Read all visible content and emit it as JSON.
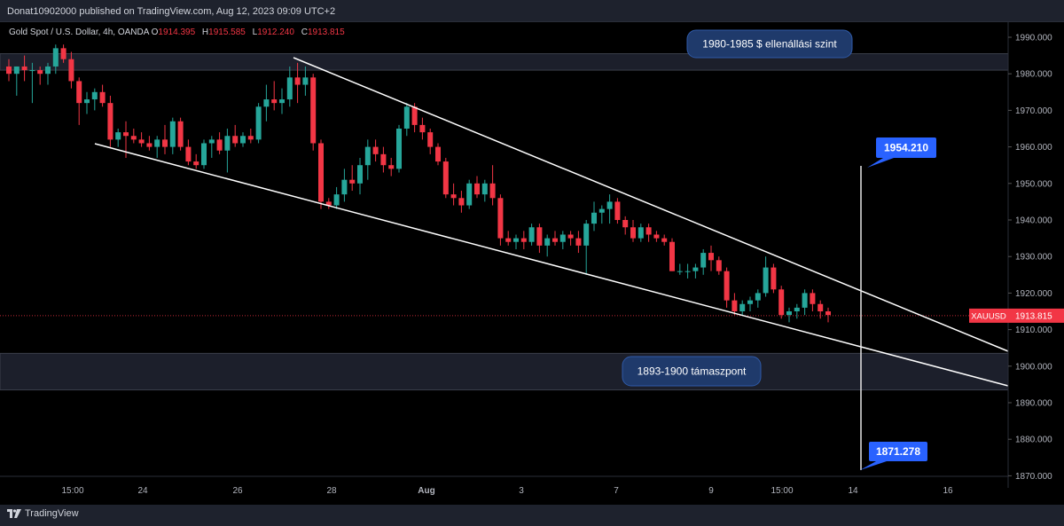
{
  "header": {
    "published_text": "Donat10902000 published on TradingView.com, Aug 12, 2023 09:09 UTC+2"
  },
  "legend": {
    "title": "Gold Spot / U.S. Dollar, 4h, OANDA",
    "o_label": "O",
    "o_value": "1914.395",
    "h_label": "H",
    "h_value": "1915.585",
    "l_label": "L",
    "l_value": "1912.240",
    "c_label": "C",
    "c_value": "1913.815"
  },
  "footer": {
    "brand": "TradingView",
    "logo_icon": "tradingview-logo-icon"
  },
  "colors": {
    "background": "#000000",
    "up": "#26a69a",
    "down": "#f23645",
    "line": "#ffffff",
    "label_bg": "#1f3a6b",
    "price_tag": "#2962ff",
    "last_price_tag": "#f23645",
    "axis_text": "#b2b5be"
  },
  "chart_data": {
    "type": "candlestick",
    "symbol": "XAUUSD",
    "timeframe": "4h",
    "last_price_label": "XAUUSD",
    "last_price": "1913.815",
    "y_ticks": [
      "1990.000",
      "1980.000",
      "1970.000",
      "1960.000",
      "1950.000",
      "1940.000",
      "1930.000",
      "1920.000",
      "1910.000",
      "1900.000",
      "1890.000",
      "1880.000",
      "1870.000"
    ],
    "ylim": [
      1867,
      1995
    ],
    "x_ticks": [
      "15:00",
      "24",
      "26",
      "28",
      "Aug",
      "3",
      "7",
      "9",
      "15:00",
      "14",
      "16"
    ],
    "annotations": {
      "resistance_label": "1980-1985 $ ellenállási szint",
      "support_label": "1893-1900 támaszpont",
      "target_up": "1954.210",
      "target_down": "1871.278"
    },
    "zones": [
      {
        "name": "resistance",
        "from": 1981,
        "to": 1985.5
      },
      {
        "name": "support",
        "from": 1893.5,
        "to": 1903.5
      }
    ],
    "candles": [
      {
        "o": 1982,
        "h": 1984,
        "l": 1978,
        "c": 1980
      },
      {
        "o": 1980,
        "h": 1982,
        "l": 1974,
        "c": 1982
      },
      {
        "o": 1982,
        "h": 1985,
        "l": 1978,
        "c": 1981
      },
      {
        "o": 1981,
        "h": 1983,
        "l": 1972,
        "c": 1981
      },
      {
        "o": 1981,
        "h": 1982,
        "l": 1977,
        "c": 1980
      },
      {
        "o": 1980,
        "h": 1983,
        "l": 1977,
        "c": 1982
      },
      {
        "o": 1982,
        "h": 1988,
        "l": 1980,
        "c": 1987
      },
      {
        "o": 1987,
        "h": 1988,
        "l": 1983,
        "c": 1984
      },
      {
        "o": 1984,
        "h": 1986,
        "l": 1976,
        "c": 1978
      },
      {
        "o": 1978,
        "h": 1979,
        "l": 1966,
        "c": 1972
      },
      {
        "o": 1972,
        "h": 1975,
        "l": 1969,
        "c": 1973
      },
      {
        "o": 1973,
        "h": 1976,
        "l": 1970,
        "c": 1975
      },
      {
        "o": 1975,
        "h": 1977,
        "l": 1971,
        "c": 1972
      },
      {
        "o": 1972,
        "h": 1974,
        "l": 1960,
        "c": 1962
      },
      {
        "o": 1962,
        "h": 1965,
        "l": 1960,
        "c": 1964
      },
      {
        "o": 1964,
        "h": 1967,
        "l": 1957,
        "c": 1963
      },
      {
        "o": 1963,
        "h": 1965,
        "l": 1961,
        "c": 1962
      },
      {
        "o": 1962,
        "h": 1964,
        "l": 1960,
        "c": 1961
      },
      {
        "o": 1961,
        "h": 1963,
        "l": 1959,
        "c": 1960
      },
      {
        "o": 1960,
        "h": 1963,
        "l": 1957,
        "c": 1962
      },
      {
        "o": 1962,
        "h": 1966,
        "l": 1958,
        "c": 1960
      },
      {
        "o": 1960,
        "h": 1968,
        "l": 1958,
        "c": 1967
      },
      {
        "o": 1967,
        "h": 1968,
        "l": 1959,
        "c": 1960
      },
      {
        "o": 1960,
        "h": 1962,
        "l": 1955,
        "c": 1956
      },
      {
        "o": 1956,
        "h": 1958,
        "l": 1954,
        "c": 1955
      },
      {
        "o": 1955,
        "h": 1962,
        "l": 1954,
        "c": 1961
      },
      {
        "o": 1961,
        "h": 1963,
        "l": 1957,
        "c": 1962
      },
      {
        "o": 1962,
        "h": 1964,
        "l": 1958,
        "c": 1959
      },
      {
        "o": 1959,
        "h": 1965,
        "l": 1953,
        "c": 1963
      },
      {
        "o": 1963,
        "h": 1966,
        "l": 1960,
        "c": 1961
      },
      {
        "o": 1961,
        "h": 1964,
        "l": 1960,
        "c": 1963
      },
      {
        "o": 1963,
        "h": 1965,
        "l": 1961,
        "c": 1962
      },
      {
        "o": 1962,
        "h": 1972,
        "l": 1961,
        "c": 1971
      },
      {
        "o": 1971,
        "h": 1977,
        "l": 1967,
        "c": 1973
      },
      {
        "o": 1973,
        "h": 1978,
        "l": 1970,
        "c": 1972
      },
      {
        "o": 1972,
        "h": 1976,
        "l": 1969,
        "c": 1973
      },
      {
        "o": 1973,
        "h": 1982,
        "l": 1971,
        "c": 1979
      },
      {
        "o": 1979,
        "h": 1983,
        "l": 1972,
        "c": 1977
      },
      {
        "o": 1977,
        "h": 1982,
        "l": 1974,
        "c": 1979
      },
      {
        "o": 1979,
        "h": 1980,
        "l": 1959,
        "c": 1961
      },
      {
        "o": 1961,
        "h": 1962,
        "l": 1943,
        "c": 1945
      },
      {
        "o": 1945,
        "h": 1946,
        "l": 1943,
        "c": 1944
      },
      {
        "o": 1944,
        "h": 1949,
        "l": 1943,
        "c": 1947
      },
      {
        "o": 1947,
        "h": 1954,
        "l": 1945,
        "c": 1951
      },
      {
        "o": 1951,
        "h": 1955,
        "l": 1948,
        "c": 1950
      },
      {
        "o": 1950,
        "h": 1957,
        "l": 1947,
        "c": 1955
      },
      {
        "o": 1955,
        "h": 1962,
        "l": 1951,
        "c": 1960
      },
      {
        "o": 1960,
        "h": 1962,
        "l": 1956,
        "c": 1958
      },
      {
        "o": 1958,
        "h": 1960,
        "l": 1953,
        "c": 1955
      },
      {
        "o": 1955,
        "h": 1957,
        "l": 1952,
        "c": 1954
      },
      {
        "o": 1954,
        "h": 1966,
        "l": 1953,
        "c": 1965
      },
      {
        "o": 1965,
        "h": 1972,
        "l": 1963,
        "c": 1971
      },
      {
        "o": 1971,
        "h": 1972,
        "l": 1964,
        "c": 1966
      },
      {
        "o": 1966,
        "h": 1968,
        "l": 1962,
        "c": 1964
      },
      {
        "o": 1964,
        "h": 1965,
        "l": 1958,
        "c": 1960
      },
      {
        "o": 1960,
        "h": 1961,
        "l": 1955,
        "c": 1956
      },
      {
        "o": 1956,
        "h": 1957,
        "l": 1946,
        "c": 1947
      },
      {
        "o": 1947,
        "h": 1950,
        "l": 1944,
        "c": 1946
      },
      {
        "o": 1946,
        "h": 1948,
        "l": 1942,
        "c": 1944
      },
      {
        "o": 1944,
        "h": 1951,
        "l": 1943,
        "c": 1950
      },
      {
        "o": 1950,
        "h": 1952,
        "l": 1946,
        "c": 1947
      },
      {
        "o": 1947,
        "h": 1951,
        "l": 1945,
        "c": 1950
      },
      {
        "o": 1950,
        "h": 1955,
        "l": 1944,
        "c": 1946
      },
      {
        "o": 1946,
        "h": 1947,
        "l": 1933,
        "c": 1935
      },
      {
        "o": 1935,
        "h": 1937,
        "l": 1933,
        "c": 1934
      },
      {
        "o": 1934,
        "h": 1936,
        "l": 1932,
        "c": 1935
      },
      {
        "o": 1935,
        "h": 1937,
        "l": 1932,
        "c": 1934
      },
      {
        "o": 1934,
        "h": 1939,
        "l": 1933,
        "c": 1938
      },
      {
        "o": 1938,
        "h": 1939,
        "l": 1931,
        "c": 1933
      },
      {
        "o": 1933,
        "h": 1936,
        "l": 1930,
        "c": 1935
      },
      {
        "o": 1935,
        "h": 1937,
        "l": 1933,
        "c": 1934
      },
      {
        "o": 1934,
        "h": 1937,
        "l": 1932,
        "c": 1936
      },
      {
        "o": 1936,
        "h": 1937,
        "l": 1933,
        "c": 1935
      },
      {
        "o": 1935,
        "h": 1937,
        "l": 1931,
        "c": 1933
      },
      {
        "o": 1933,
        "h": 1940,
        "l": 1925,
        "c": 1939
      },
      {
        "o": 1939,
        "h": 1945,
        "l": 1937,
        "c": 1942
      },
      {
        "o": 1942,
        "h": 1944,
        "l": 1939,
        "c": 1943
      },
      {
        "o": 1943,
        "h": 1947,
        "l": 1939,
        "c": 1945
      },
      {
        "o": 1945,
        "h": 1946,
        "l": 1939,
        "c": 1940
      },
      {
        "o": 1940,
        "h": 1941,
        "l": 1936,
        "c": 1938
      },
      {
        "o": 1938,
        "h": 1940,
        "l": 1934,
        "c": 1935
      },
      {
        "o": 1935,
        "h": 1939,
        "l": 1934,
        "c": 1938
      },
      {
        "o": 1938,
        "h": 1939,
        "l": 1934,
        "c": 1936
      },
      {
        "o": 1936,
        "h": 1937,
        "l": 1934,
        "c": 1935
      },
      {
        "o": 1935,
        "h": 1936,
        "l": 1933,
        "c": 1934
      },
      {
        "o": 1934,
        "h": 1935,
        "l": 1926,
        "c": 1926
      },
      {
        "o": 1926,
        "h": 1928,
        "l": 1925,
        "c": 1926
      },
      {
        "o": 1926,
        "h": 1928,
        "l": 1924,
        "c": 1926
      },
      {
        "o": 1926,
        "h": 1928,
        "l": 1924,
        "c": 1927
      },
      {
        "o": 1927,
        "h": 1932,
        "l": 1925,
        "c": 1931
      },
      {
        "o": 1931,
        "h": 1933,
        "l": 1926,
        "c": 1929
      },
      {
        "o": 1929,
        "h": 1930,
        "l": 1925,
        "c": 1926
      },
      {
        "o": 1926,
        "h": 1927,
        "l": 1916,
        "c": 1918
      },
      {
        "o": 1918,
        "h": 1920,
        "l": 1914,
        "c": 1915
      },
      {
        "o": 1915,
        "h": 1918,
        "l": 1914,
        "c": 1917
      },
      {
        "o": 1917,
        "h": 1919,
        "l": 1915,
        "c": 1918
      },
      {
        "o": 1918,
        "h": 1921,
        "l": 1916,
        "c": 1920
      },
      {
        "o": 1920,
        "h": 1930,
        "l": 1919,
        "c": 1927
      },
      {
        "o": 1927,
        "h": 1928,
        "l": 1920,
        "c": 1921
      },
      {
        "o": 1921,
        "h": 1922,
        "l": 1913,
        "c": 1914
      },
      {
        "o": 1914,
        "h": 1916,
        "l": 1912,
        "c": 1915
      },
      {
        "o": 1915,
        "h": 1917,
        "l": 1913,
        "c": 1916
      },
      {
        "o": 1916,
        "h": 1921,
        "l": 1914,
        "c": 1920
      },
      {
        "o": 1920,
        "h": 1921,
        "l": 1915,
        "c": 1917
      },
      {
        "o": 1917,
        "h": 1918,
        "l": 1913,
        "c": 1915
      },
      {
        "o": 1915,
        "h": 1916,
        "l": 1912,
        "c": 1914
      }
    ]
  }
}
